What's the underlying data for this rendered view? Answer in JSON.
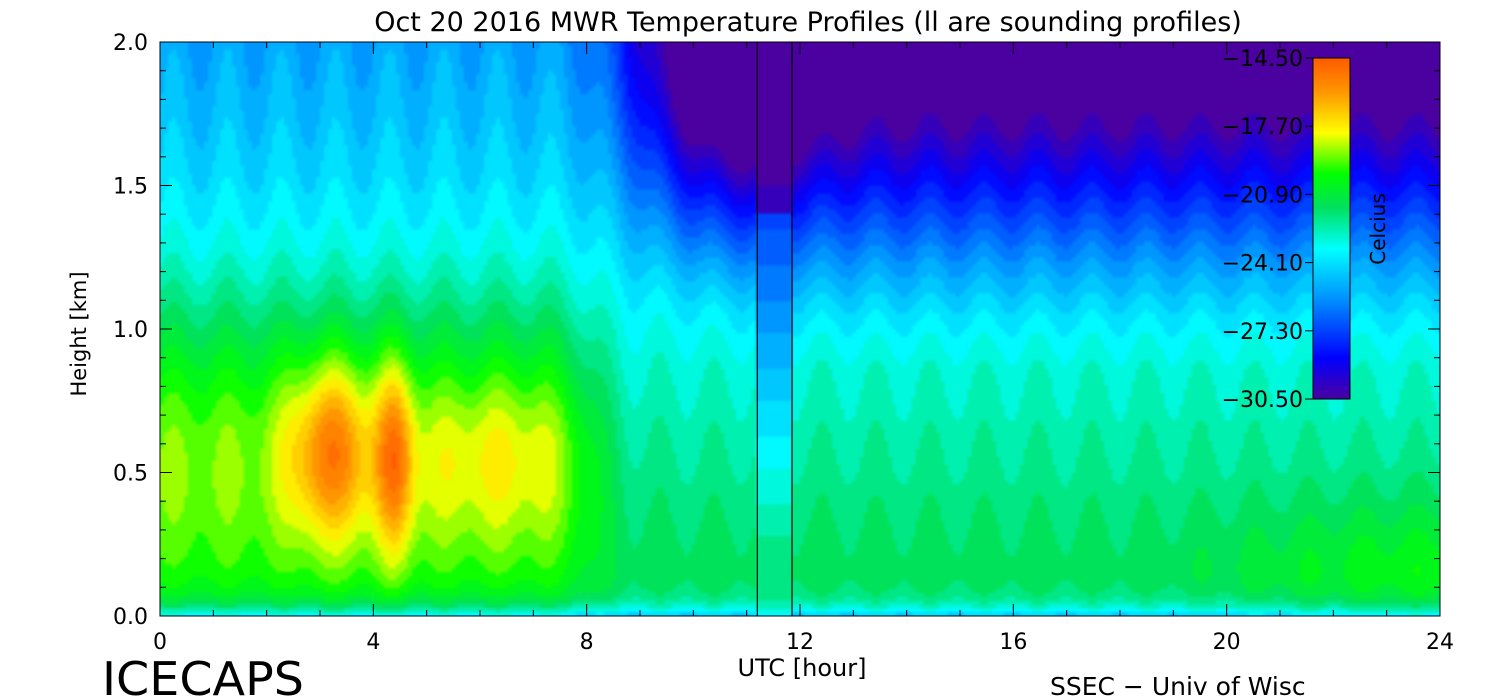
{
  "chart_data": {
    "type": "heatmap",
    "title": "Oct 20 2016 MWR Temperature Profiles (ll are sounding profiles)",
    "xlabel": "UTC [hour]",
    "ylabel": "Height [km]",
    "xlim": [
      0,
      24
    ],
    "ylim": [
      0,
      2
    ],
    "x_ticks": [
      0,
      4,
      8,
      12,
      16,
      20,
      24
    ],
    "x_tick_labels": [
      "0",
      "4",
      "8",
      "12",
      "16",
      "20",
      "24"
    ],
    "y_ticks": [
      0,
      0.5,
      1,
      1.5,
      2
    ],
    "y_tick_labels": [
      "0.0",
      "0.5",
      "1.0",
      "1.5",
      "2.0"
    ],
    "sounding_profiles_utc": [
      11.2,
      11.85
    ],
    "colorbar": {
      "label": "Celcius",
      "min": -30.5,
      "max": -14.5,
      "tick_values": [
        -14.5,
        -17.7,
        -20.9,
        -24.1,
        -27.3,
        -30.5
      ],
      "tick_labels": [
        "−14.50",
        "−17.70",
        "−20.90",
        "−24.10",
        "−27.30",
        "−30.50"
      ],
      "colors": [
        "#4b00a0",
        "#0000ff",
        "#0096ff",
        "#00ffff",
        "#00e060",
        "#00ff00",
        "#ffff00",
        "#ff9600",
        "#ff5a00"
      ]
    },
    "temperature_features": [
      {
        "desc": "surface layer",
        "x_range": [
          0,
          24
        ],
        "z_range": [
          0,
          0.08
        ],
        "value": -24.5
      },
      {
        "desc": "warm core",
        "x_center": 3.2,
        "z_center": 0.55,
        "value": -15.4
      },
      {
        "desc": "warm core",
        "x_center": 4.4,
        "z_center": 0.5,
        "value": -15.6
      },
      {
        "desc": "warm region",
        "x_center": 6.2,
        "z_center": 0.55,
        "value": -17.8
      },
      {
        "desc": "cold aloft",
        "x_range": [
          8,
          24
        ],
        "z_range": [
          1.5,
          2.0
        ],
        "value": -28.0
      },
      {
        "desc": "late-day lower layer",
        "x_range": [
          12,
          24
        ],
        "z_range": [
          0.1,
          1.0
        ],
        "value": -21.5
      }
    ]
  },
  "footer": {
    "left_logo": "ICECAPS",
    "right_credit": "SSEC − Univ of Wisc"
  }
}
